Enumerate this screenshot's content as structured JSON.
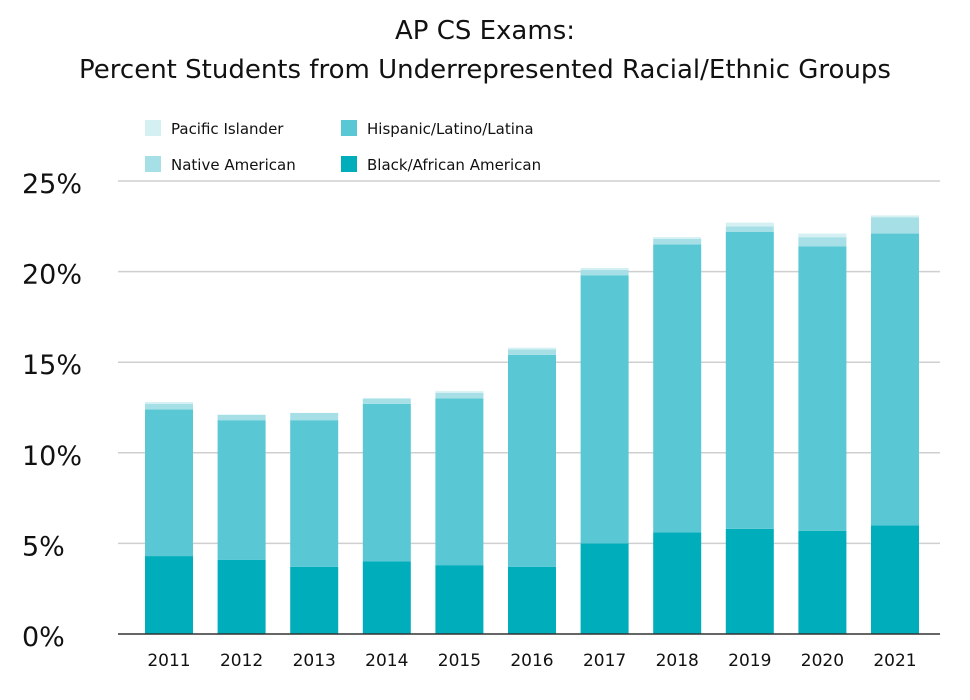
{
  "chart_data": {
    "type": "bar",
    "stacked": true,
    "title": [
      "AP CS Exams:",
      "Percent Students from Underrepresented Racial/Ethnic Groups"
    ],
    "xlabel": "",
    "ylabel": "",
    "categories": [
      "2011",
      "2012",
      "2013",
      "2014",
      "2015",
      "2016",
      "2017",
      "2018",
      "2019",
      "2020",
      "2021"
    ],
    "yticks": [
      "0%",
      "5%",
      "10%",
      "15%",
      "20%",
      "25%"
    ],
    "ylim": [
      0,
      25
    ],
    "grid": true,
    "legend_position": "top-left",
    "series": [
      {
        "name": "Black/African American",
        "color": "#00adbb",
        "values": [
          4.3,
          4.1,
          3.7,
          4.0,
          3.8,
          3.7,
          5.0,
          5.6,
          5.8,
          5.7,
          6.0
        ]
      },
      {
        "name": "Hispanic/Latino/Latina",
        "color": "#5ac8d4",
        "values": [
          8.1,
          7.7,
          8.1,
          8.7,
          9.2,
          11.7,
          14.8,
          15.9,
          16.4,
          15.7,
          16.1
        ]
      },
      {
        "name": "Native American",
        "color": "#a6e0e6",
        "values": [
          0.3,
          0.3,
          0.4,
          0.3,
          0.3,
          0.3,
          0.3,
          0.3,
          0.3,
          0.5,
          0.9
        ]
      },
      {
        "name": "Pacific Islander",
        "color": "#d4f0f3",
        "values": [
          0.1,
          0.0,
          0.0,
          0.0,
          0.1,
          0.1,
          0.1,
          0.1,
          0.2,
          0.2,
          0.1
        ]
      }
    ],
    "legend_order": [
      "Pacific Islander",
      "Hispanic/Latino/Latina",
      "Native American",
      "Black/African American"
    ]
  }
}
